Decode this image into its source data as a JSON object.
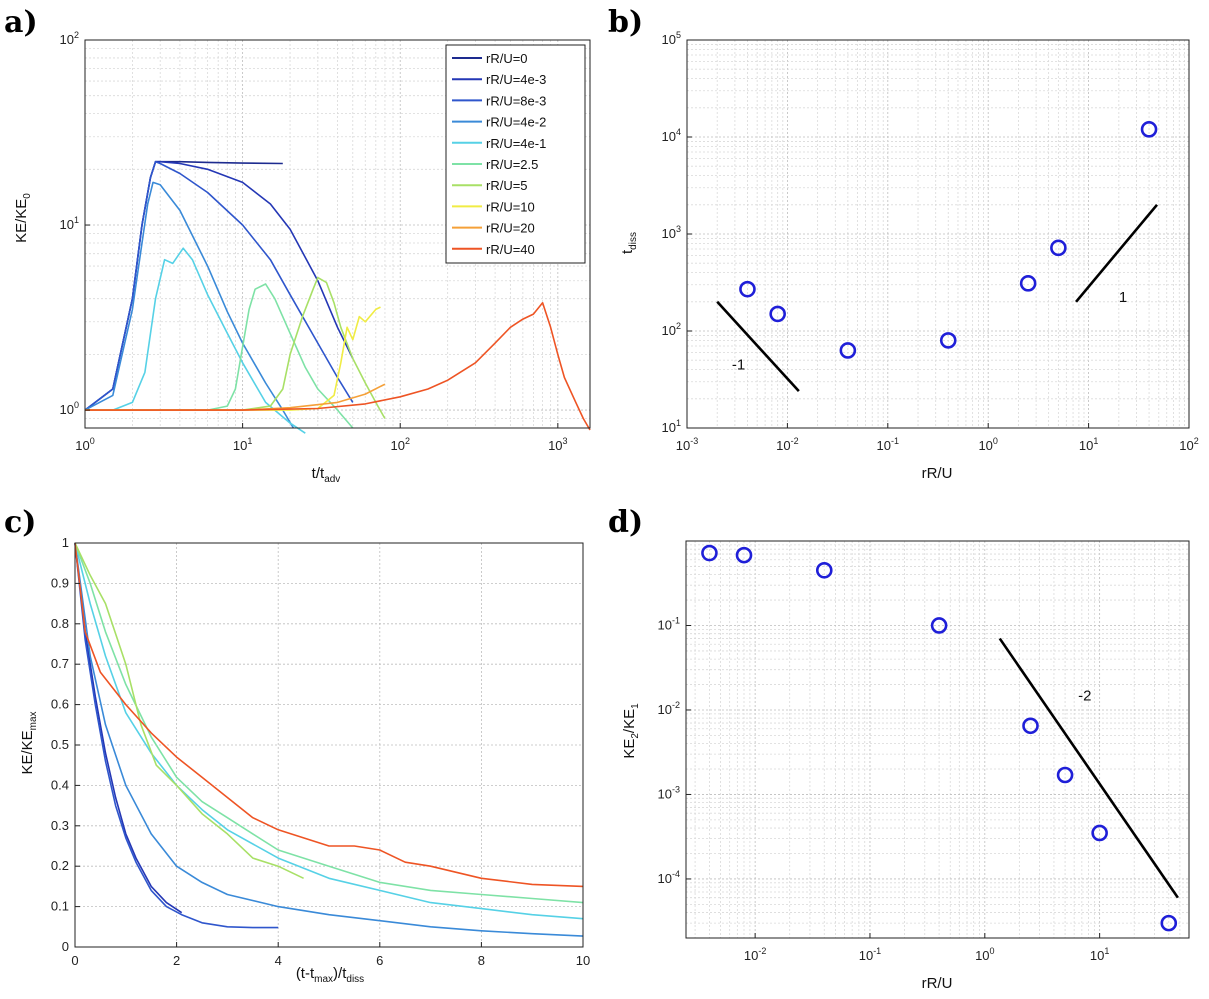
{
  "chart_data": [
    {
      "panel": "a)",
      "type": "line",
      "xscale": "log",
      "yscale": "log",
      "xlim": [
        1,
        1600
      ],
      "ylim": [
        0.8,
        100
      ],
      "xlabel": "t/t",
      "xlabel_sub": "adv",
      "ylabel": "KE/KE",
      "ylabel_sub": "0",
      "grid": true,
      "legend_position": "top-right",
      "xticks": [
        {
          "v": 1,
          "e": "0"
        },
        {
          "v": 10,
          "e": "1"
        },
        {
          "v": 100,
          "e": "2"
        },
        {
          "v": 1000,
          "e": "3"
        }
      ],
      "yticks": [
        {
          "v": 1,
          "e": "0"
        },
        {
          "v": 10,
          "e": "1"
        },
        {
          "v": 100,
          "e": "2"
        }
      ],
      "series": [
        {
          "name": "rR/U=0",
          "color": "#1d2b8f",
          "x": [
            1,
            1.5,
            2,
            2.3,
            2.6,
            2.8,
            3,
            4,
            6,
            10,
            18
          ],
          "y": [
            1,
            1.3,
            4,
            10,
            18,
            22,
            22,
            22,
            21.8,
            21.6,
            21.5
          ]
        },
        {
          "name": "rR/U=4e-3",
          "color": "#2437b5",
          "x": [
            1,
            1.5,
            2,
            2.3,
            2.6,
            2.8,
            3,
            4,
            6,
            10,
            15,
            20,
            30,
            40,
            50
          ],
          "y": [
            1,
            1.3,
            4,
            10,
            18,
            22,
            22,
            21.5,
            20,
            17,
            13,
            9.5,
            5,
            2.8,
            1.9
          ]
        },
        {
          "name": "rR/U=8e-3",
          "color": "#2f56cc",
          "x": [
            1,
            1.5,
            2,
            2.3,
            2.6,
            2.8,
            3,
            4,
            6,
            10,
            15,
            20,
            30,
            40,
            50
          ],
          "y": [
            1,
            1.3,
            4,
            10,
            18,
            22,
            21.5,
            19,
            15,
            10,
            6.5,
            4.2,
            2.3,
            1.5,
            1.1
          ]
        },
        {
          "name": "rR/U=4e-2",
          "color": "#3a8ad8",
          "x": [
            1,
            1.5,
            2,
            2.3,
            2.5,
            2.7,
            3,
            4,
            6,
            8,
            10,
            14,
            18,
            21
          ],
          "y": [
            1,
            1.2,
            3.5,
            8,
            13,
            17,
            16.5,
            12,
            6,
            3.4,
            2.3,
            1.4,
            1.0,
            0.8
          ]
        },
        {
          "name": "rR/U=4e-1",
          "color": "#56d1e6",
          "x": [
            1,
            1.5,
            2,
            2.4,
            2.8,
            3.2,
            3.6,
            4.2,
            4.8,
            6,
            8,
            10,
            14,
            20,
            25
          ],
          "y": [
            1,
            1.0,
            1.1,
            1.6,
            4,
            6.5,
            6.2,
            7.5,
            6.5,
            4.2,
            2.6,
            1.8,
            1.1,
            0.85,
            0.75
          ]
        },
        {
          "name": "rR/U=2.5",
          "color": "#7ee2a6",
          "x": [
            1,
            3,
            6,
            8,
            9,
            10,
            11,
            12,
            14,
            16,
            20,
            25,
            30,
            40,
            50
          ],
          "y": [
            1,
            1.0,
            1.0,
            1.05,
            1.3,
            2.2,
            3.5,
            4.5,
            4.8,
            4.0,
            2.6,
            1.7,
            1.3,
            1.0,
            0.8
          ]
        },
        {
          "name": "rR/U=5",
          "color": "#a8e066",
          "x": [
            1,
            5,
            10,
            15,
            18,
            20,
            24,
            28,
            30,
            34,
            38,
            42,
            50,
            60,
            70,
            80
          ],
          "y": [
            1,
            1.0,
            1.0,
            1.05,
            1.3,
            2.0,
            3.2,
            4.5,
            5.2,
            4.9,
            3.8,
            2.8,
            1.9,
            1.4,
            1.1,
            0.9
          ]
        },
        {
          "name": "rR/U=10",
          "color": "#f0ec44",
          "x": [
            1,
            10,
            20,
            30,
            38,
            42,
            46,
            50,
            55,
            60,
            70,
            75
          ],
          "y": [
            1,
            1.0,
            1.0,
            1.02,
            1.2,
            1.8,
            2.8,
            2.4,
            3.2,
            3.0,
            3.5,
            3.6
          ]
        },
        {
          "name": "rR/U=20",
          "color": "#f5a038",
          "x": [
            1,
            10,
            20,
            40,
            60,
            80
          ],
          "y": [
            1,
            1.0,
            1.03,
            1.1,
            1.22,
            1.38
          ]
        },
        {
          "name": "rR/U=40",
          "color": "#ee5424",
          "x": [
            1,
            10,
            30,
            60,
            100,
            150,
            200,
            300,
            400,
            500,
            600,
            700,
            800,
            900,
            1000,
            1100,
            1300,
            1450,
            1600
          ],
          "y": [
            1,
            1.0,
            1.02,
            1.08,
            1.18,
            1.3,
            1.45,
            1.8,
            2.3,
            2.8,
            3.1,
            3.3,
            3.8,
            2.8,
            2.0,
            1.5,
            1.1,
            0.9,
            0.78
          ]
        }
      ]
    },
    {
      "panel": "b)",
      "type": "scatter",
      "xscale": "log",
      "yscale": "log",
      "xlim": [
        0.001,
        100
      ],
      "ylim": [
        10,
        100000
      ],
      "xlabel": "rR/U",
      "ylabel": "t",
      "ylabel_sub": "diss",
      "grid": true,
      "xticks": [
        {
          "v": 0.001,
          "e": "-3"
        },
        {
          "v": 0.01,
          "e": "-2"
        },
        {
          "v": 0.1,
          "e": "-1"
        },
        {
          "v": 1,
          "e": "0"
        },
        {
          "v": 10,
          "e": "1"
        },
        {
          "v": 100,
          "e": "2"
        }
      ],
      "yticks": [
        {
          "v": 10,
          "e": "1"
        },
        {
          "v": 100,
          "e": "2"
        },
        {
          "v": 1000,
          "e": "3"
        },
        {
          "v": 10000,
          "e": "4"
        },
        {
          "v": 100000,
          "e": "5"
        }
      ],
      "points": [
        {
          "x": 0.004,
          "y": 270
        },
        {
          "x": 0.008,
          "y": 150
        },
        {
          "x": 0.04,
          "y": 63
        },
        {
          "x": 0.4,
          "y": 80
        },
        {
          "x": 2.5,
          "y": 310
        },
        {
          "x": 5,
          "y": 720
        },
        {
          "x": 40,
          "y": 12000
        }
      ],
      "slope_lines": [
        {
          "label": "-1",
          "x": [
            0.002,
            0.013
          ],
          "y": [
            200,
            24
          ],
          "label_at": [
            0.0028,
            40
          ]
        },
        {
          "label": "1",
          "x": [
            7.5,
            48
          ],
          "y": [
            200,
            2000
          ],
          "label_at": [
            20,
            200
          ]
        }
      ]
    },
    {
      "panel": "c)",
      "type": "line",
      "xscale": "linear",
      "yscale": "linear",
      "xlim": [
        0,
        10
      ],
      "ylim": [
        0,
        1
      ],
      "xlabel": "(t-t",
      "xlabel_sub1": "max",
      "xlabel_mid": ")/t",
      "xlabel_sub2": "diss",
      "ylabel": "KE/KE",
      "ylabel_sub": "max",
      "grid": true,
      "xticks": [
        0,
        2,
        4,
        6,
        8,
        10
      ],
      "yticks": [
        0,
        0.1,
        0.2,
        0.3,
        0.4,
        0.5,
        0.6,
        0.7,
        0.8,
        0.9,
        1
      ],
      "series": [
        {
          "name": "rR/U=4e-3",
          "color": "#2437b5",
          "x": [
            0,
            0.2,
            0.4,
            0.6,
            0.8,
            1.0,
            1.2,
            1.5,
            1.8,
            2.1
          ],
          "y": [
            1,
            0.78,
            0.62,
            0.48,
            0.37,
            0.28,
            0.22,
            0.15,
            0.11,
            0.085
          ]
        },
        {
          "name": "rR/U=8e-3",
          "color": "#2f56cc",
          "x": [
            0,
            0.2,
            0.4,
            0.6,
            0.8,
            1.0,
            1.2,
            1.5,
            1.8,
            2.1,
            2.5,
            3,
            3.5,
            4
          ],
          "y": [
            1,
            0.76,
            0.6,
            0.46,
            0.35,
            0.27,
            0.21,
            0.14,
            0.1,
            0.08,
            0.06,
            0.05,
            0.048,
            0.048
          ]
        },
        {
          "name": "rR/U=4e-2",
          "color": "#3a8ad8",
          "x": [
            0,
            0.3,
            0.6,
            1.0,
            1.5,
            2.0,
            2.5,
            3,
            4,
            5,
            6,
            7,
            8,
            9,
            10
          ],
          "y": [
            1,
            0.72,
            0.55,
            0.4,
            0.28,
            0.2,
            0.16,
            0.13,
            0.1,
            0.08,
            0.065,
            0.05,
            0.04,
            0.033,
            0.027
          ]
        },
        {
          "name": "rR/U=4e-1",
          "color": "#56d1e6",
          "x": [
            0,
            0.3,
            0.6,
            1.0,
            1.5,
            2.0,
            2.5,
            3,
            4,
            5,
            6,
            7,
            8,
            9,
            10
          ],
          "y": [
            1,
            0.85,
            0.72,
            0.58,
            0.48,
            0.4,
            0.34,
            0.29,
            0.22,
            0.17,
            0.14,
            0.11,
            0.095,
            0.08,
            0.07
          ]
        },
        {
          "name": "rR/U=2.5",
          "color": "#7ee2a6",
          "x": [
            0,
            0.3,
            0.6,
            1.0,
            1.5,
            2.0,
            2.5,
            3,
            3.5,
            4,
            5,
            6,
            7,
            8,
            9,
            10
          ],
          "y": [
            1,
            0.9,
            0.78,
            0.65,
            0.52,
            0.42,
            0.36,
            0.32,
            0.28,
            0.24,
            0.2,
            0.16,
            0.14,
            0.13,
            0.12,
            0.11
          ]
        },
        {
          "name": "rR/U=5",
          "color": "#a8e066",
          "x": [
            0,
            0.3,
            0.6,
            1.0,
            1.3,
            1.6,
            2.0,
            2.5,
            3,
            3.5,
            4,
            4.5
          ],
          "y": [
            1,
            0.92,
            0.85,
            0.7,
            0.55,
            0.45,
            0.4,
            0.33,
            0.28,
            0.22,
            0.2,
            0.17
          ]
        },
        {
          "name": "rR/U=40",
          "color": "#ee5424",
          "x": [
            0,
            0.2,
            0.5,
            1.0,
            1.5,
            2.0,
            2.5,
            3.0,
            3.5,
            4.0,
            4.5,
            5.0,
            5.5,
            6.0,
            6.5,
            7.0,
            8.0,
            9.0,
            10.0
          ],
          "y": [
            1,
            0.78,
            0.68,
            0.6,
            0.53,
            0.47,
            0.42,
            0.37,
            0.32,
            0.29,
            0.27,
            0.25,
            0.25,
            0.24,
            0.21,
            0.2,
            0.17,
            0.155,
            0.15
          ]
        }
      ]
    },
    {
      "panel": "d)",
      "type": "scatter",
      "xscale": "log",
      "yscale": "log",
      "xlim": [
        0.0025,
        60
      ],
      "ylim": [
        2e-05,
        1
      ],
      "xlabel": "rR/U",
      "ylabel": "KE",
      "ylabel_sub": "2",
      "ylabel_mid": "/KE",
      "ylabel_sub2": "1",
      "grid": true,
      "xticks": [
        {
          "v": 0.01,
          "e": "-2"
        },
        {
          "v": 0.1,
          "e": "-1"
        },
        {
          "v": 1,
          "e": "0"
        },
        {
          "v": 10,
          "e": "1"
        }
      ],
      "yticks": [
        {
          "v": 0.0001,
          "e": "-4"
        },
        {
          "v": 0.001,
          "e": "-3"
        },
        {
          "v": 0.01,
          "e": "-2"
        },
        {
          "v": 0.1,
          "e": "-1"
        }
      ],
      "points": [
        {
          "x": 0.004,
          "y": 0.72
        },
        {
          "x": 0.008,
          "y": 0.68
        },
        {
          "x": 0.04,
          "y": 0.45
        },
        {
          "x": 0.4,
          "y": 0.1
        },
        {
          "x": 2.5,
          "y": 0.0065
        },
        {
          "x": 5,
          "y": 0.0017
        },
        {
          "x": 10,
          "y": 0.00035
        },
        {
          "x": 40,
          "y": 3e-05
        }
      ],
      "slope_lines": [
        {
          "label": "-2",
          "x": [
            1.35,
            48
          ],
          "y": [
            0.07,
            6e-05
          ],
          "label_at": [
            6.5,
            0.013
          ]
        }
      ]
    }
  ]
}
